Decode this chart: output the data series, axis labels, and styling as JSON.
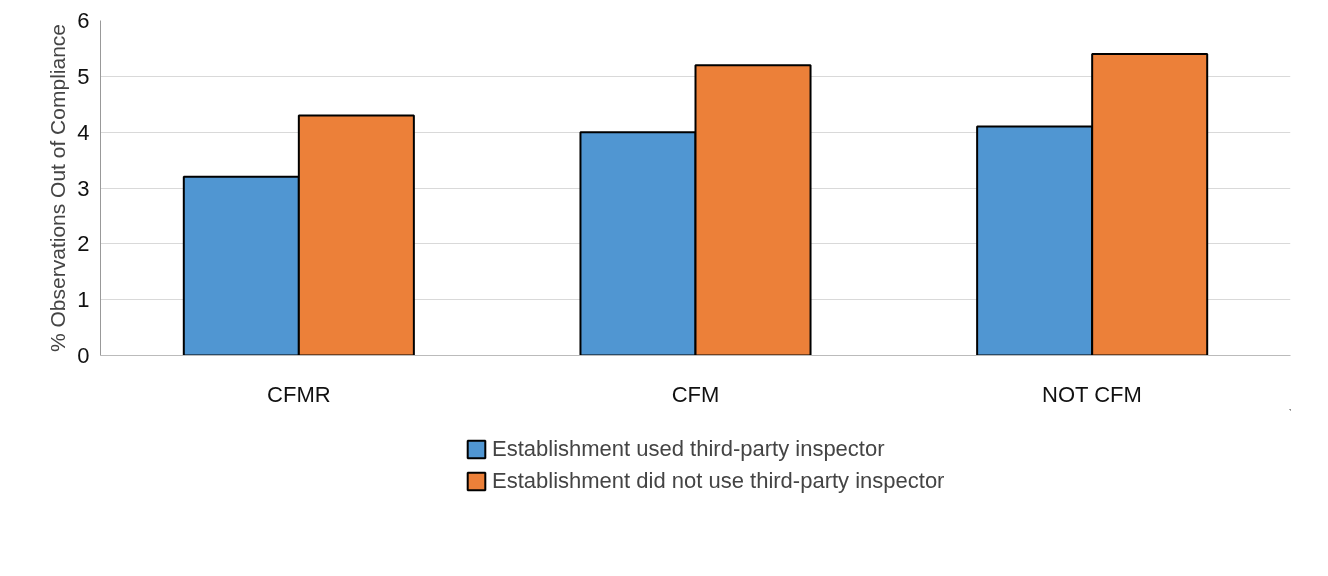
{
  "chart_data": {
    "type": "bar",
    "ylabel": "% Observations Out of Compliance",
    "categories": [
      "CFMR",
      "CFM",
      "NOT CFM"
    ],
    "series": [
      {
        "name": "Establishment used third-party inspector",
        "color": "#5096d2",
        "values": [
          3.2,
          4.0,
          4.1
        ]
      },
      {
        "name": "Establishment did not use third-party inspector",
        "color": "#ec8039",
        "values": [
          4.3,
          5.2,
          5.4
        ]
      }
    ],
    "ylim": [
      0,
      6
    ],
    "yticks": [
      0,
      1,
      2,
      3,
      4,
      5,
      6
    ],
    "grid": "y",
    "legend": "bottom"
  }
}
